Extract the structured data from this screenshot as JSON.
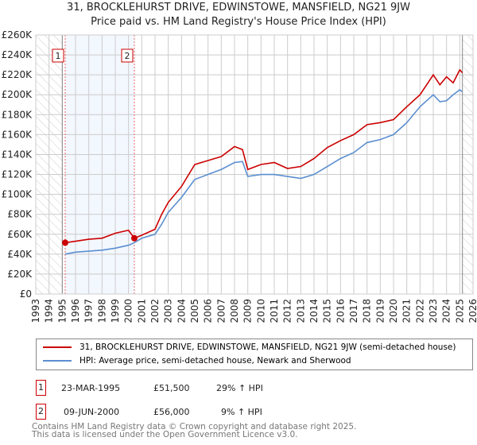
{
  "chart_data": {
    "type": "line",
    "title": "31, BROCKLEHURST DRIVE, EDWINSTOWE, MANSFIELD, NG21 9JW",
    "subtitle": "Price paid vs. HM Land Registry's House Price Index (HPI)",
    "xlim": [
      1993,
      2026
    ],
    "ylim": [
      0,
      260000
    ],
    "x_ticks": [
      "1993",
      "1994",
      "1995",
      "1996",
      "1997",
      "1998",
      "1999",
      "2000",
      "2001",
      "2002",
      "2003",
      "2004",
      "2005",
      "2006",
      "2007",
      "2008",
      "2009",
      "2010",
      "2011",
      "2012",
      "2013",
      "2014",
      "2015",
      "2016",
      "2017",
      "2018",
      "2019",
      "2020",
      "2021",
      "2022",
      "2023",
      "2024",
      "2025",
      "2026"
    ],
    "y_ticks": [
      "£0",
      "£20K",
      "£40K",
      "£60K",
      "£80K",
      "£100K",
      "£120K",
      "£140K",
      "£160K",
      "£180K",
      "£200K",
      "£220K",
      "£240K",
      "£260K"
    ],
    "grid": true,
    "series": [
      {
        "name": "31, BROCKLEHURST DRIVE, EDWINSTOWE, MANSFIELD, NG21 9JW (semi-detached house)",
        "color": "#cc0000",
        "x": [
          1995.22,
          1996,
          1997,
          1998,
          1999,
          2000,
          2000.44,
          2001,
          2002,
          2002.5,
          2003,
          2004,
          2005,
          2006,
          2007,
          2008,
          2008.6,
          2009,
          2010,
          2011,
          2012,
          2013,
          2014,
          2015,
          2016,
          2017,
          2018,
          2019,
          2020,
          2021,
          2022,
          2023,
          2023.5,
          2024,
          2024.5,
          2025,
          2025.2
        ],
        "y": [
          51500,
          53000,
          55000,
          56000,
          61000,
          64000,
          56000,
          59000,
          65000,
          80000,
          92000,
          108000,
          130000,
          134000,
          138000,
          148000,
          145000,
          125000,
          130000,
          132000,
          126000,
          128000,
          136000,
          147000,
          154000,
          160000,
          170000,
          172000,
          175000,
          188000,
          200000,
          220000,
          210000,
          218000,
          212000,
          225000,
          222000
        ]
      },
      {
        "name": "HPI: Average price, semi-detached house, Newark and Sherwood",
        "color": "#5b8fd0",
        "x": [
          1995.22,
          1996,
          1997,
          1998,
          1999,
          2000,
          2000.44,
          2001,
          2002,
          2002.5,
          2003,
          2004,
          2005,
          2006,
          2007,
          2008,
          2008.6,
          2009,
          2010,
          2011,
          2012,
          2013,
          2014,
          2015,
          2016,
          2017,
          2018,
          2019,
          2020,
          2021,
          2022,
          2023,
          2023.5,
          2024,
          2024.5,
          2025,
          2025.2
        ],
        "y": [
          40000,
          42000,
          43000,
          44000,
          46000,
          49000,
          51500,
          56000,
          60000,
          70000,
          82000,
          97000,
          115000,
          120000,
          125000,
          132000,
          133000,
          118000,
          120000,
          120000,
          118000,
          116000,
          120000,
          128000,
          136000,
          142000,
          152000,
          155000,
          160000,
          172000,
          188000,
          200000,
          193000,
          194000,
          200000,
          205000,
          203000
        ]
      }
    ],
    "sales": [
      {
        "label": "1",
        "x": 1995.22,
        "y": 51500,
        "date": "23-MAR-1995",
        "price": "£51,500",
        "hpi": "29% ↑ HPI"
      },
      {
        "label": "2",
        "x": 2000.44,
        "y": 56000,
        "date": "09-JUN-2000",
        "price": "£56,000",
        "hpi": "9% ↑ HPI"
      }
    ],
    "data_start": 1995.0,
    "data_end": 2025.2
  },
  "footer": {
    "line1": "Contains HM Land Registry data © Crown copyright and database right 2025.",
    "line2": "This data is licensed under the Open Government Licence v3.0."
  }
}
